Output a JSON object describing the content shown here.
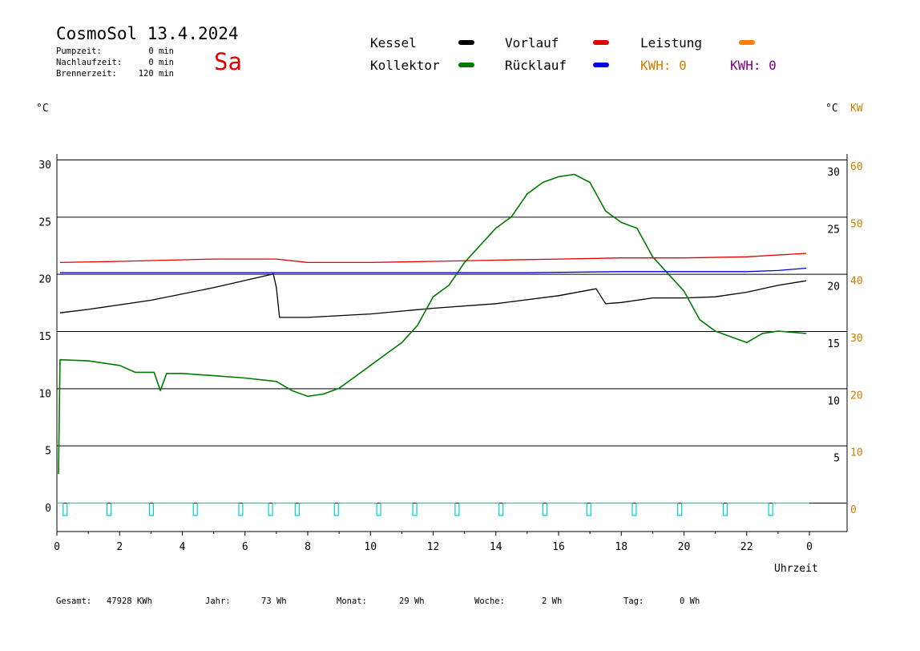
{
  "header": {
    "title": "CosmoSol 13.4.2024",
    "day": "Sa",
    "info": [
      {
        "label": "Pumpzeit:",
        "value": "0 min"
      },
      {
        "label": "Nachlaufzeit:",
        "value": "0 min"
      },
      {
        "label": "Brennerzeit:",
        "value": "120 min"
      }
    ]
  },
  "legend": {
    "kessel": "Kessel",
    "kollektor": "Kollektor",
    "vorlauf": "Vorlauf",
    "ruecklauf": "Rücklauf",
    "leistung": "Leistung",
    "kwh1": "KWH: 0",
    "kwh2": "KWH: 0"
  },
  "colors": {
    "kessel": "#000000",
    "kollektor": "#007a00",
    "vorlauf": "#e00000",
    "ruecklauf": "#0000e0",
    "leistung": "#ff8000",
    "kwh2": "#800080",
    "pump": "#00d0d0",
    "axis_orange": "#d08000"
  },
  "axes": {
    "left_unit": "°C",
    "right_unit": "°C",
    "right_unit2": "KW",
    "x_label": "Uhrzeit"
  },
  "footer": [
    {
      "label": "Gesamt:",
      "value": "47928 KWh"
    },
    {
      "label": "Jahr:",
      "value": "73 Wh"
    },
    {
      "label": "Monat:",
      "value": "29 Wh"
    },
    {
      "label": "Woche:",
      "value": "2 Wh"
    },
    {
      "label": "Tag:",
      "value": "0 Wh"
    }
  ],
  "chart_data": {
    "type": "line",
    "title": "CosmoSol 13.4.2024",
    "xlabel": "Uhrzeit",
    "ylabel": "°C",
    "xlim": [
      0,
      24
    ],
    "ylim": [
      0,
      30
    ],
    "grid": true,
    "legend_position": "top",
    "x_ticks": [
      "0",
      "2",
      "4",
      "6",
      "8",
      "10",
      "12",
      "14",
      "16",
      "18",
      "20",
      "22",
      "0"
    ],
    "y_ticks_left": [
      "0",
      "5",
      "10",
      "15",
      "20",
      "25",
      "30"
    ],
    "y_ticks_right_c": [
      "5",
      "10",
      "15",
      "20",
      "25",
      "30"
    ],
    "y_ticks_right_kw": [
      "0",
      "10",
      "20",
      "30",
      "40",
      "50",
      "60"
    ],
    "series": [
      {
        "name": "Kessel",
        "color": "#000000",
        "points": [
          [
            0.1,
            16.6
          ],
          [
            1,
            16.9
          ],
          [
            3,
            17.7
          ],
          [
            5,
            18.8
          ],
          [
            6.9,
            20.0
          ],
          [
            7.0,
            18.8
          ],
          [
            7.1,
            16.2
          ],
          [
            8,
            16.2
          ],
          [
            10,
            16.5
          ],
          [
            12,
            17.0
          ],
          [
            14,
            17.4
          ],
          [
            16,
            18.1
          ],
          [
            17.2,
            18.7
          ],
          [
            17.5,
            17.4
          ],
          [
            18,
            17.5
          ],
          [
            19,
            17.9
          ],
          [
            20,
            17.9
          ],
          [
            21,
            18.0
          ],
          [
            22,
            18.4
          ],
          [
            23,
            19.0
          ],
          [
            23.9,
            19.4
          ]
        ]
      },
      {
        "name": "Kollektor",
        "color": "#007a00",
        "points": [
          [
            0.05,
            2.5
          ],
          [
            0.1,
            12.5
          ],
          [
            1,
            12.4
          ],
          [
            2,
            12.0
          ],
          [
            2.5,
            11.4
          ],
          [
            3.1,
            11.4
          ],
          [
            3.3,
            9.8
          ],
          [
            3.5,
            11.3
          ],
          [
            4,
            11.3
          ],
          [
            5,
            11.1
          ],
          [
            6,
            10.9
          ],
          [
            7,
            10.6
          ],
          [
            7.5,
            9.8
          ],
          [
            8,
            9.3
          ],
          [
            8.5,
            9.5
          ],
          [
            9,
            10.0
          ],
          [
            9.5,
            11.0
          ],
          [
            10,
            12.0
          ],
          [
            10.5,
            13.0
          ],
          [
            11,
            14.0
          ],
          [
            11.5,
            15.5
          ],
          [
            12,
            18.0
          ],
          [
            12.5,
            19.0
          ],
          [
            13,
            21.0
          ],
          [
            13.5,
            22.5
          ],
          [
            14,
            24.0
          ],
          [
            14.5,
            25.0
          ],
          [
            15,
            27.0
          ],
          [
            15.5,
            28.0
          ],
          [
            16,
            28.5
          ],
          [
            16.5,
            28.7
          ],
          [
            17,
            28.0
          ],
          [
            17.5,
            25.5
          ],
          [
            18,
            24.5
          ],
          [
            18.5,
            24.0
          ],
          [
            19,
            21.5
          ],
          [
            19.5,
            20.0
          ],
          [
            20,
            18.5
          ],
          [
            20.5,
            16.0
          ],
          [
            21,
            15.0
          ],
          [
            22,
            14.0
          ],
          [
            22.5,
            14.8
          ],
          [
            23,
            15.0
          ],
          [
            23.9,
            14.8
          ]
        ]
      },
      {
        "name": "Vorlauf",
        "color": "#e00000",
        "points": [
          [
            0.1,
            21.0
          ],
          [
            2,
            21.1
          ],
          [
            5,
            21.3
          ],
          [
            7,
            21.3
          ],
          [
            8,
            21.0
          ],
          [
            10,
            21.0
          ],
          [
            12,
            21.1
          ],
          [
            14,
            21.2
          ],
          [
            16,
            21.3
          ],
          [
            18,
            21.4
          ],
          [
            20,
            21.4
          ],
          [
            22,
            21.5
          ],
          [
            23.9,
            21.8
          ]
        ]
      },
      {
        "name": "Rücklauf",
        "color": "#0000e0",
        "points": [
          [
            0.1,
            20.1
          ],
          [
            5,
            20.1
          ],
          [
            10,
            20.1
          ],
          [
            15,
            20.1
          ],
          [
            18,
            20.2
          ],
          [
            20,
            20.2
          ],
          [
            22,
            20.2
          ],
          [
            23,
            20.3
          ],
          [
            23.9,
            20.5
          ]
        ]
      }
    ],
    "pump_pulses_hours": [
      0.2,
      1.6,
      2.95,
      4.35,
      5.8,
      6.75,
      7.6,
      8.85,
      10.2,
      11.35,
      12.7,
      14.1,
      15.5,
      16.9,
      18.35,
      19.8,
      21.25,
      22.7
    ]
  }
}
